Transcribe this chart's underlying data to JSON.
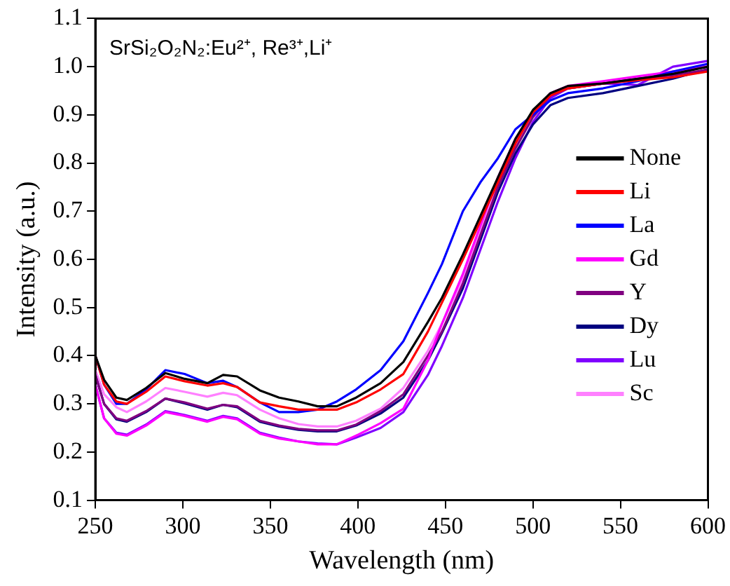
{
  "chart_data": {
    "type": "line",
    "xlabel": "Wavelength (nm)",
    "ylabel": "Intensity (a.u.)",
    "annotations": [
      "SrSi₂O₂N₂:Eu²⁺, Re³⁺,Li⁺"
    ],
    "x": [
      250,
      255,
      262,
      268,
      279,
      290,
      301,
      314,
      323,
      331,
      344,
      355,
      366,
      377,
      388,
      399,
      413,
      426,
      440,
      448,
      460,
      470,
      480,
      490,
      500,
      510,
      520,
      540,
      560,
      580,
      600
    ],
    "series": [
      {
        "name": "None",
        "color": "#000000",
        "values": [
          0.4,
          0.35,
          0.313,
          0.308,
          0.333,
          0.364,
          0.352,
          0.343,
          0.36,
          0.357,
          0.328,
          0.313,
          0.305,
          0.295,
          0.295,
          0.313,
          0.343,
          0.387,
          0.47,
          0.52,
          0.61,
          0.69,
          0.77,
          0.85,
          0.91,
          0.945,
          0.96,
          0.965,
          0.975,
          0.985,
          1.0
        ]
      },
      {
        "name": "Li",
        "color": "#ff0000",
        "values": [
          0.4,
          0.34,
          0.305,
          0.3,
          0.325,
          0.357,
          0.347,
          0.338,
          0.343,
          0.335,
          0.303,
          0.295,
          0.288,
          0.288,
          0.288,
          0.303,
          0.33,
          0.362,
          0.45,
          0.51,
          0.6,
          0.68,
          0.76,
          0.84,
          0.905,
          0.94,
          0.955,
          0.965,
          0.972,
          0.978,
          0.99
        ]
      },
      {
        "name": "La",
        "color": "#0000ff",
        "values": [
          0.4,
          0.34,
          0.3,
          0.3,
          0.33,
          0.37,
          0.362,
          0.343,
          0.348,
          0.335,
          0.303,
          0.283,
          0.283,
          0.288,
          0.305,
          0.33,
          0.37,
          0.43,
          0.53,
          0.59,
          0.7,
          0.76,
          0.81,
          0.87,
          0.9,
          0.93,
          0.945,
          0.955,
          0.97,
          0.99,
          1.006
        ]
      },
      {
        "name": "Gd",
        "color": "#ff00ff",
        "values": [
          0.34,
          0.27,
          0.238,
          0.234,
          0.255,
          0.283,
          0.275,
          0.263,
          0.273,
          0.268,
          0.238,
          0.228,
          0.222,
          0.216,
          0.216,
          0.234,
          0.26,
          0.29,
          0.39,
          0.466,
          0.57,
          0.67,
          0.77,
          0.85,
          0.905,
          0.945,
          0.96,
          0.97,
          0.98,
          0.99,
          1.0
        ]
      },
      {
        "name": "Y",
        "color": "#800080",
        "values": [
          0.36,
          0.3,
          0.27,
          0.265,
          0.285,
          0.311,
          0.303,
          0.29,
          0.298,
          0.295,
          0.265,
          0.255,
          0.248,
          0.245,
          0.245,
          0.257,
          0.285,
          0.32,
          0.4,
          0.45,
          0.55,
          0.65,
          0.75,
          0.83,
          0.895,
          0.94,
          0.955,
          0.965,
          0.975,
          0.982,
          0.994
        ]
      },
      {
        "name": "Dy",
        "color": "#000080",
        "values": [
          0.36,
          0.3,
          0.268,
          0.263,
          0.283,
          0.311,
          0.301,
          0.288,
          0.298,
          0.293,
          0.263,
          0.253,
          0.246,
          0.243,
          0.243,
          0.255,
          0.28,
          0.313,
          0.39,
          0.447,
          0.54,
          0.64,
          0.74,
          0.82,
          0.88,
          0.92,
          0.935,
          0.945,
          0.96,
          0.975,
          0.995
        ]
      },
      {
        "name": "Lu",
        "color": "#8000ff",
        "values": [
          0.34,
          0.27,
          0.24,
          0.236,
          0.257,
          0.285,
          0.277,
          0.265,
          0.275,
          0.27,
          0.24,
          0.23,
          0.222,
          0.218,
          0.216,
          0.23,
          0.25,
          0.283,
          0.36,
          0.42,
          0.52,
          0.62,
          0.72,
          0.81,
          0.885,
          0.935,
          0.955,
          0.965,
          0.962,
          1.0,
          1.012
        ]
      },
      {
        "name": "Sc",
        "color": "#ff80ff",
        "values": [
          0.37,
          0.32,
          0.293,
          0.283,
          0.305,
          0.333,
          0.325,
          0.315,
          0.323,
          0.318,
          0.288,
          0.27,
          0.258,
          0.253,
          0.253,
          0.265,
          0.29,
          0.333,
          0.41,
          0.466,
          0.56,
          0.66,
          0.76,
          0.84,
          0.9,
          0.94,
          0.955,
          0.965,
          0.975,
          0.988,
          1.003
        ]
      }
    ],
    "xlim": [
      250,
      600
    ],
    "xticks": [
      250,
      300,
      350,
      400,
      450,
      500,
      550,
      600
    ],
    "ylim": [
      0.1,
      1.1
    ],
    "yticks": [
      0.1,
      0.2,
      0.3,
      0.4,
      0.5,
      0.6,
      0.7,
      0.8,
      0.9,
      {
        "value": 1,
        "label": "1.0"
      },
      1.1
    ],
    "grid": false,
    "legend": "right",
    "marker": "none",
    "line_style": "solid"
  }
}
